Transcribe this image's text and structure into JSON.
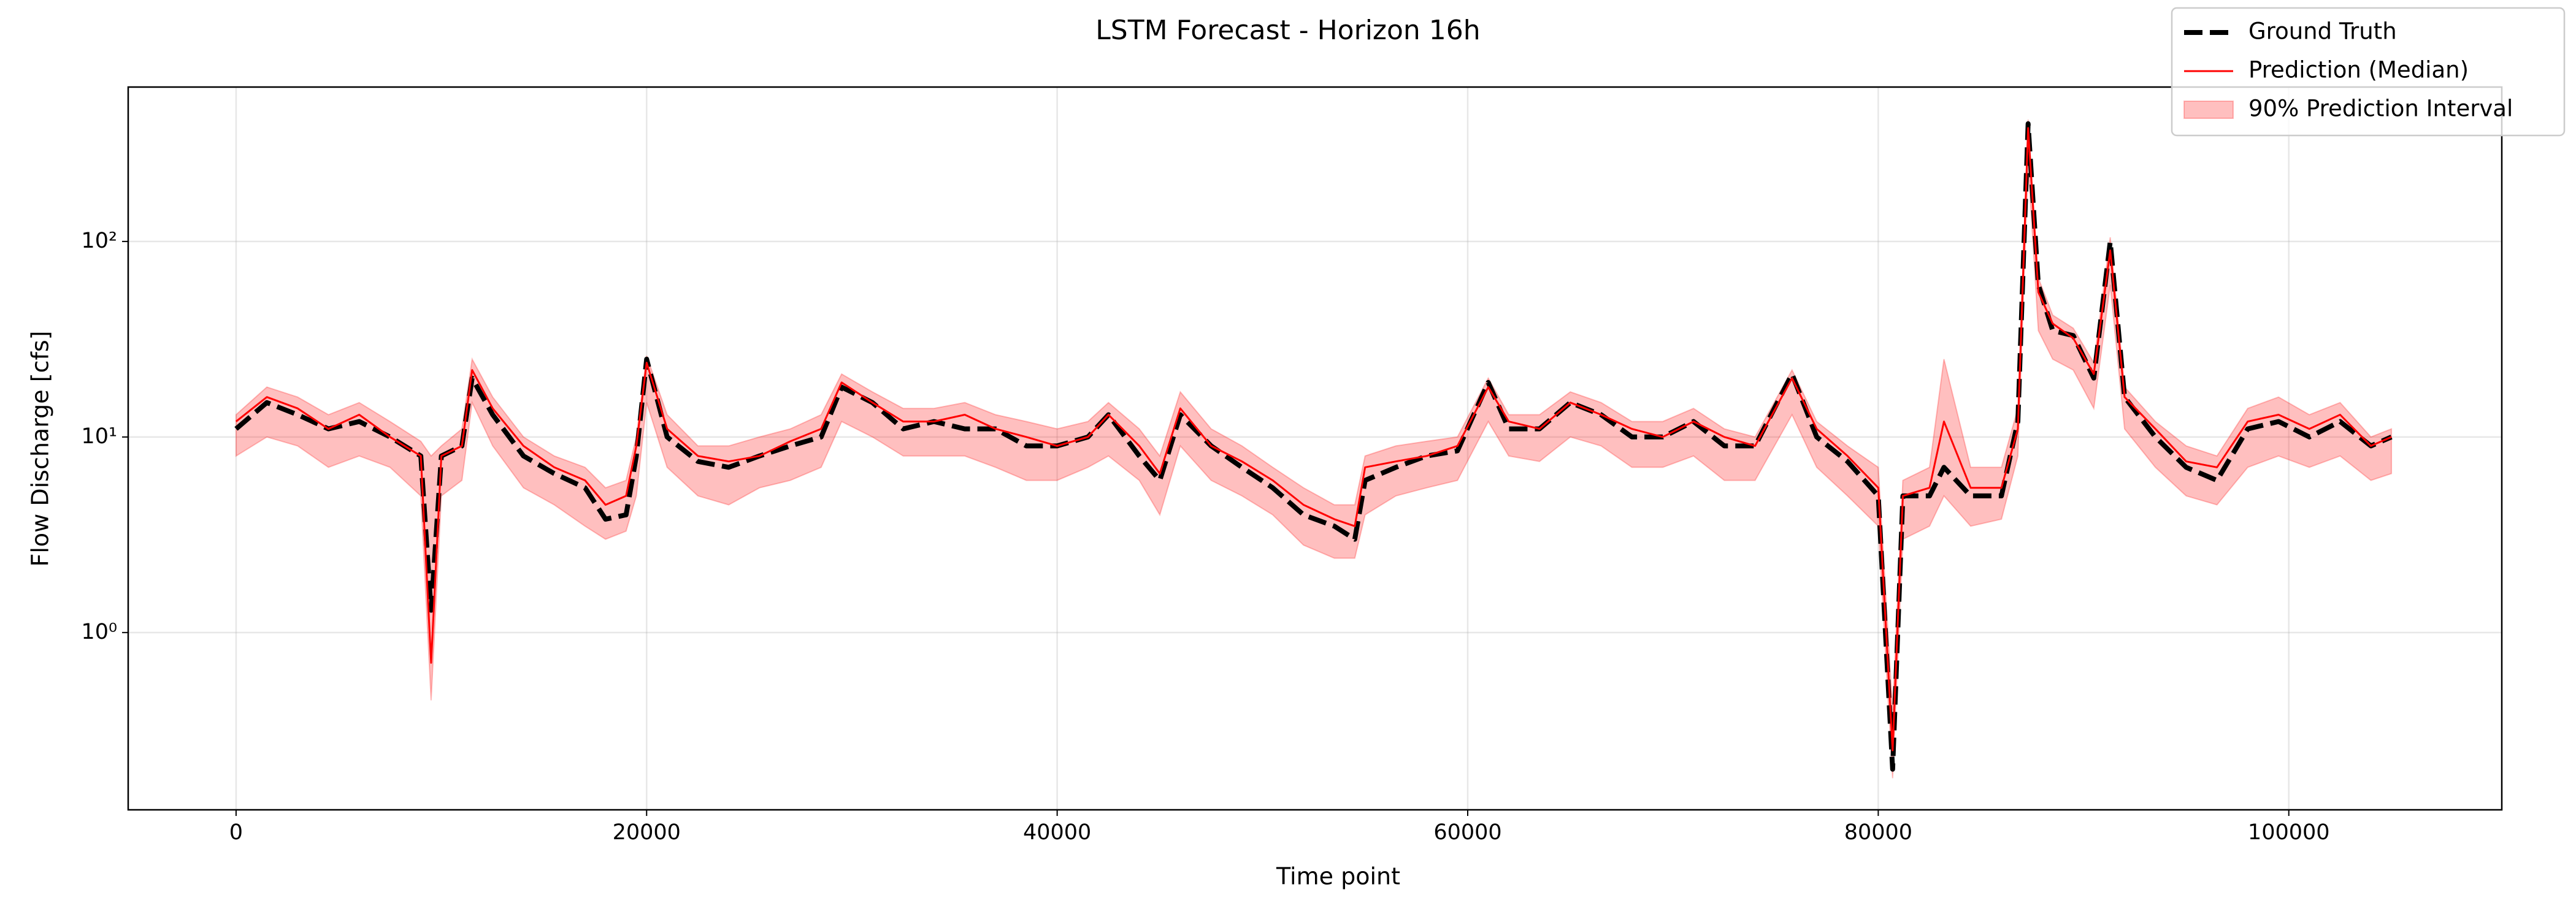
{
  "chart_data": {
    "type": "line",
    "title": "LSTM Forecast - Horizon 16h",
    "xlabel": "Time point",
    "ylabel": "Flow Discharge [cfs]",
    "yscale": "log",
    "grid": true,
    "legend": "upper right",
    "xlim": [
      -5256,
      110376
    ],
    "ylim": [
      0.124,
      616
    ],
    "xticks": [
      0,
      20000,
      40000,
      60000,
      80000,
      100000
    ],
    "yticks": [
      {
        "value": 1,
        "label": "10⁰"
      },
      {
        "value": 10,
        "label": "10¹"
      },
      {
        "value": 100,
        "label": "10²"
      }
    ],
    "x": [
      0,
      1500,
      3000,
      4500,
      6000,
      7500,
      9000,
      9500,
      10000,
      11000,
      11500,
      12500,
      14000,
      15500,
      17000,
      18000,
      19000,
      19500,
      20000,
      21000,
      22500,
      24000,
      25500,
      27000,
      28500,
      29500,
      31000,
      32500,
      34000,
      35500,
      37000,
      38500,
      40000,
      41500,
      42500,
      44000,
      45000,
      46000,
      47500,
      49000,
      50500,
      52000,
      53500,
      54500,
      55000,
      56500,
      58000,
      59500,
      61000,
      62000,
      63500,
      65000,
      66500,
      68000,
      69500,
      71000,
      72500,
      74000,
      75800,
      77000,
      78500,
      80000,
      80700,
      81200,
      82500,
      83200,
      84500,
      86000,
      86800,
      87300,
      87800,
      88500,
      89500,
      90500,
      91300,
      92000,
      93500,
      95000,
      96500,
      98000,
      99500,
      101000,
      102500,
      104000,
      105000
    ],
    "series": [
      {
        "name": "Ground Truth",
        "color": "#000000",
        "style": "dashed",
        "values": [
          11,
          15,
          13,
          11,
          12,
          10,
          8,
          1.3,
          8,
          9,
          20,
          13,
          8,
          6.5,
          5.5,
          3.8,
          4,
          8,
          25,
          10,
          7.5,
          7,
          8,
          9,
          10,
          18,
          15,
          11,
          12,
          11,
          11,
          9,
          9,
          10,
          13,
          8,
          6,
          13,
          9,
          7,
          5.5,
          4,
          3.5,
          3,
          6,
          7,
          8,
          8.5,
          19,
          11,
          11,
          15,
          13,
          10,
          10,
          12,
          9,
          9,
          21,
          10,
          7.5,
          5,
          0.2,
          5,
          5,
          7,
          5,
          5,
          12,
          400,
          60,
          35,
          33,
          20,
          100,
          16,
          10,
          7,
          6,
          11,
          12,
          10,
          12,
          9,
          10
        ]
      },
      {
        "name": "Prediction (Median)",
        "color": "#ff0000",
        "style": "solid",
        "values": [
          12,
          16,
          14,
          11,
          13,
          10,
          8,
          0.7,
          8,
          9,
          22,
          14,
          9,
          7,
          6,
          4.5,
          5,
          9,
          24,
          11,
          8,
          7.5,
          8,
          9.5,
          11,
          19,
          15,
          12,
          12,
          13,
          11,
          10,
          9,
          10,
          13,
          9,
          6.5,
          14,
          9,
          7.5,
          6,
          4.5,
          3.8,
          3.5,
          7,
          7.5,
          8,
          9,
          18,
          12,
          11,
          15,
          13,
          11,
          10,
          12,
          10,
          9,
          20,
          11,
          8,
          5.5,
          0.25,
          5,
          5.5,
          12,
          5.5,
          5.5,
          11,
          380,
          55,
          38,
          32,
          21,
          90,
          16,
          11,
          7.5,
          7,
          12,
          13,
          11,
          13,
          9,
          10
        ]
      }
    ],
    "interval": {
      "name": "90% Prediction Interval",
      "color": "#ff0000",
      "lower": [
        8,
        10,
        9,
        7,
        8,
        7,
        5,
        0.45,
        5,
        6,
        15,
        9,
        5.5,
        4.5,
        3.5,
        3,
        3.3,
        5,
        15,
        7,
        5,
        4.5,
        5.5,
        6,
        7,
        12,
        10,
        8,
        8,
        8,
        7,
        6,
        6,
        7,
        8,
        6,
        4,
        9,
        6,
        5,
        4,
        2.8,
        2.4,
        2.4,
        4,
        5,
        5.5,
        6,
        12,
        8,
        7.5,
        10,
        9,
        7,
        7,
        8,
        6,
        6,
        13,
        7,
        5,
        3.5,
        0.18,
        3,
        3.5,
        5,
        3.5,
        3.8,
        8,
        250,
        35,
        25,
        22,
        14,
        60,
        11,
        7,
        5,
        4.5,
        7,
        8,
        7,
        8,
        6,
        6.5
      ],
      "upper": [
        13,
        18,
        16,
        13,
        15,
        12,
        9.5,
        8,
        9,
        11,
        25,
        16,
        10,
        8,
        7,
        5.5,
        6,
        10,
        26,
        13,
        9,
        9,
        10,
        11,
        13,
        21,
        17,
        14,
        14,
        15,
        13,
        12,
        11,
        12,
        15,
        11,
        8,
        17,
        11,
        9,
        7,
        5.5,
        4.5,
        4.5,
        8,
        9,
        9.5,
        10,
        20,
        13,
        13,
        17,
        15,
        12,
        12,
        14,
        11,
        10,
        22,
        12,
        9,
        7,
        0.4,
        6,
        7,
        25,
        7,
        7,
        14,
        420,
        65,
        42,
        36,
        24,
        105,
        18,
        12,
        9,
        8,
        14,
        16,
        13,
        15,
        10,
        11
      ]
    }
  }
}
